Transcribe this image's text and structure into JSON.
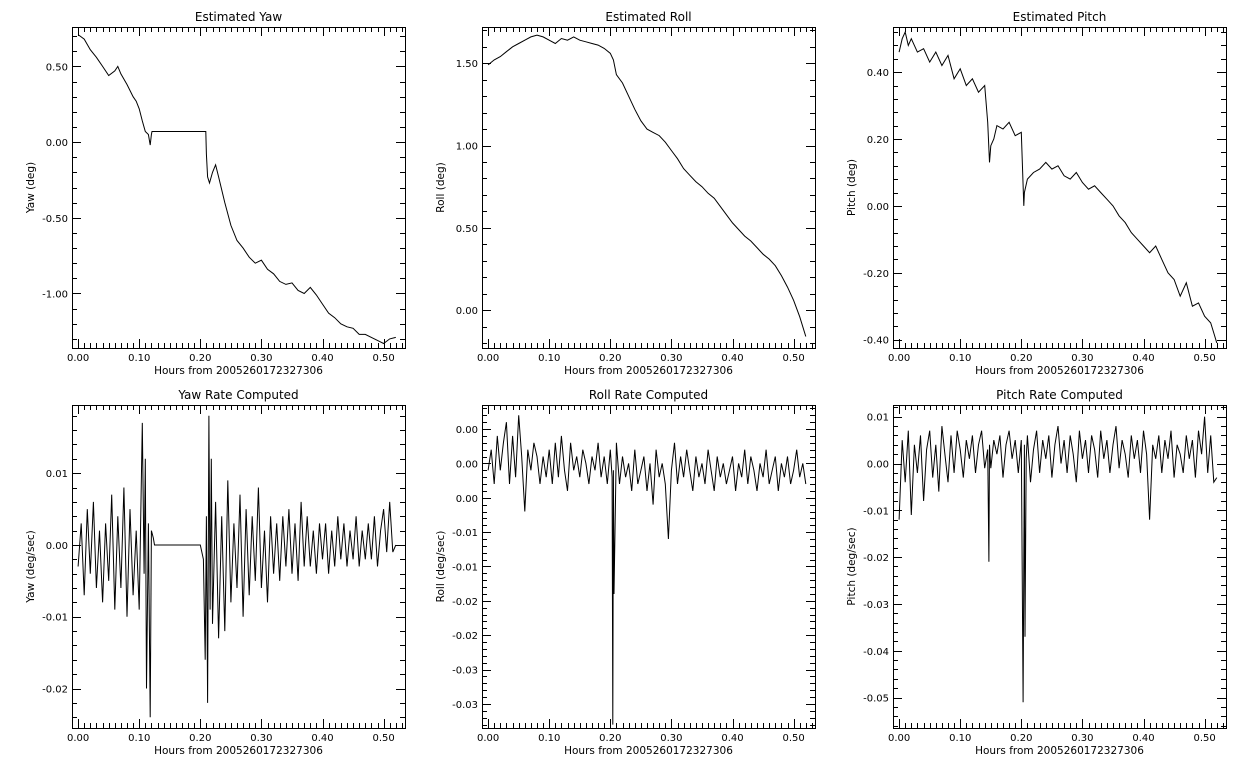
{
  "chart_data": [
    {
      "type": "line",
      "title": "Estimated Yaw",
      "xlabel": "Hours from 2005260172327306",
      "ylabel": "Yaw (deg)",
      "xlim": [
        -0.01,
        0.535
      ],
      "ylim": [
        -1.36,
        0.76
      ],
      "xticks": [
        0.0,
        0.1,
        0.2,
        0.3,
        0.4,
        0.5
      ],
      "xtick_labels": [
        "0.00",
        "0.10",
        "0.20",
        "0.30",
        "0.40",
        "0.50"
      ],
      "yticks": [
        0.5,
        0.0,
        -0.5,
        -1.0
      ],
      "ytick_labels": [
        "0.50",
        "0.00",
        "-0.50",
        "-1.00"
      ],
      "x": [
        0.0,
        0.01,
        0.02,
        0.03,
        0.04,
        0.05,
        0.06,
        0.065,
        0.07,
        0.08,
        0.09,
        0.095,
        0.1,
        0.105,
        0.11,
        0.115,
        0.118,
        0.12,
        0.121,
        0.13,
        0.15,
        0.2,
        0.209,
        0.21,
        0.212,
        0.215,
        0.22,
        0.225,
        0.23,
        0.24,
        0.25,
        0.26,
        0.27,
        0.28,
        0.29,
        0.3,
        0.31,
        0.32,
        0.33,
        0.34,
        0.35,
        0.36,
        0.37,
        0.38,
        0.39,
        0.4,
        0.41,
        0.42,
        0.43,
        0.44,
        0.45,
        0.46,
        0.47,
        0.48,
        0.49,
        0.5,
        0.51,
        0.52
      ],
      "y": [
        0.71,
        0.68,
        0.61,
        0.56,
        0.5,
        0.44,
        0.47,
        0.5,
        0.45,
        0.38,
        0.3,
        0.27,
        0.22,
        0.14,
        0.07,
        0.05,
        -0.02,
        0.05,
        0.07,
        0.07,
        0.07,
        0.07,
        0.07,
        -0.08,
        -0.23,
        -0.27,
        -0.2,
        -0.15,
        -0.23,
        -0.4,
        -0.55,
        -0.65,
        -0.7,
        -0.76,
        -0.8,
        -0.78,
        -0.84,
        -0.87,
        -0.92,
        -0.94,
        -0.93,
        -0.98,
        -1.0,
        -0.96,
        -1.01,
        -1.07,
        -1.13,
        -1.16,
        -1.2,
        -1.22,
        -1.23,
        -1.27,
        -1.27,
        -1.29,
        -1.31,
        -1.33,
        -1.3,
        -1.29
      ]
    },
    {
      "type": "line",
      "title": "Estimated Roll",
      "xlabel": "Hours from 2005260172327306",
      "ylabel": "Roll (deg)",
      "xlim": [
        -0.01,
        0.535
      ],
      "ylim": [
        -0.23,
        1.72
      ],
      "xticks": [
        0.0,
        0.1,
        0.2,
        0.3,
        0.4,
        0.5
      ],
      "xtick_labels": [
        "0.00",
        "0.10",
        "0.20",
        "0.30",
        "0.40",
        "0.50"
      ],
      "yticks": [
        1.5,
        1.0,
        0.5,
        0.0
      ],
      "ytick_labels": [
        "1.50",
        "1.00",
        "0.50",
        "0.00"
      ],
      "x": [
        0.0,
        0.01,
        0.02,
        0.03,
        0.04,
        0.05,
        0.06,
        0.07,
        0.08,
        0.09,
        0.1,
        0.11,
        0.12,
        0.13,
        0.14,
        0.15,
        0.16,
        0.17,
        0.18,
        0.19,
        0.2,
        0.205,
        0.21,
        0.22,
        0.23,
        0.24,
        0.25,
        0.26,
        0.27,
        0.28,
        0.29,
        0.3,
        0.31,
        0.32,
        0.33,
        0.34,
        0.35,
        0.36,
        0.37,
        0.38,
        0.39,
        0.4,
        0.41,
        0.42,
        0.43,
        0.44,
        0.45,
        0.46,
        0.47,
        0.48,
        0.49,
        0.5,
        0.51,
        0.52
      ],
      "y": [
        1.49,
        1.52,
        1.54,
        1.57,
        1.6,
        1.62,
        1.64,
        1.66,
        1.67,
        1.66,
        1.64,
        1.62,
        1.65,
        1.64,
        1.66,
        1.64,
        1.63,
        1.62,
        1.61,
        1.59,
        1.56,
        1.52,
        1.43,
        1.38,
        1.3,
        1.22,
        1.15,
        1.1,
        1.08,
        1.06,
        1.02,
        0.97,
        0.92,
        0.86,
        0.82,
        0.78,
        0.75,
        0.71,
        0.68,
        0.63,
        0.58,
        0.53,
        0.49,
        0.45,
        0.42,
        0.38,
        0.34,
        0.31,
        0.27,
        0.21,
        0.14,
        0.06,
        -0.04,
        -0.16
      ]
    },
    {
      "type": "line",
      "title": "Estimated Pitch",
      "xlabel": "Hours from 2005260172327306",
      "ylabel": "Pitch (deg)",
      "xlim": [
        -0.01,
        0.535
      ],
      "ylim": [
        -0.425,
        0.535
      ],
      "xticks": [
        0.0,
        0.1,
        0.2,
        0.3,
        0.4,
        0.5
      ],
      "xtick_labels": [
        "0.00",
        "0.10",
        "0.20",
        "0.30",
        "0.40",
        "0.50"
      ],
      "yticks": [
        0.4,
        0.2,
        0.0,
        -0.2,
        -0.4
      ],
      "ytick_labels": [
        "0.40",
        "0.20",
        "0.00",
        "-0.20",
        "-0.40"
      ],
      "x": [
        0.0,
        0.005,
        0.01,
        0.015,
        0.02,
        0.03,
        0.04,
        0.05,
        0.06,
        0.07,
        0.08,
        0.09,
        0.1,
        0.11,
        0.12,
        0.13,
        0.14,
        0.145,
        0.148,
        0.15,
        0.155,
        0.16,
        0.17,
        0.18,
        0.19,
        0.2,
        0.204,
        0.205,
        0.21,
        0.22,
        0.23,
        0.24,
        0.25,
        0.26,
        0.27,
        0.28,
        0.29,
        0.3,
        0.31,
        0.32,
        0.33,
        0.34,
        0.35,
        0.36,
        0.37,
        0.38,
        0.39,
        0.4,
        0.41,
        0.42,
        0.43,
        0.44,
        0.45,
        0.46,
        0.47,
        0.48,
        0.49,
        0.5,
        0.51,
        0.515,
        0.52
      ],
      "y": [
        0.46,
        0.5,
        0.52,
        0.48,
        0.5,
        0.46,
        0.47,
        0.43,
        0.46,
        0.42,
        0.45,
        0.38,
        0.41,
        0.36,
        0.38,
        0.34,
        0.36,
        0.25,
        0.13,
        0.18,
        0.2,
        0.24,
        0.23,
        0.25,
        0.21,
        0.22,
        0.0,
        0.04,
        0.08,
        0.1,
        0.11,
        0.13,
        0.11,
        0.12,
        0.09,
        0.08,
        0.1,
        0.07,
        0.05,
        0.06,
        0.04,
        0.02,
        0.0,
        -0.03,
        -0.05,
        -0.08,
        -0.1,
        -0.12,
        -0.14,
        -0.12,
        -0.16,
        -0.2,
        -0.22,
        -0.27,
        -0.23,
        -0.3,
        -0.29,
        -0.33,
        -0.35,
        -0.38,
        -0.41
      ]
    },
    {
      "type": "line",
      "title": "Yaw Rate Computed",
      "xlabel": "Hours from 2005260172327306",
      "ylabel": "Yaw (deg/sec)",
      "xlim": [
        -0.01,
        0.535
      ],
      "ylim": [
        -0.0255,
        0.0195
      ],
      "xticks": [
        0.0,
        0.1,
        0.2,
        0.3,
        0.4,
        0.5
      ],
      "xtick_labels": [
        "0.00",
        "0.10",
        "0.20",
        "0.30",
        "0.40",
        "0.50"
      ],
      "yticks": [
        0.01,
        0.0,
        -0.01,
        -0.02
      ],
      "ytick_labels": [
        "0.01",
        "0.00",
        "-0.01",
        "-0.02"
      ],
      "x": [
        0.0,
        0.005,
        0.01,
        0.015,
        0.02,
        0.025,
        0.03,
        0.035,
        0.04,
        0.045,
        0.05,
        0.055,
        0.06,
        0.065,
        0.07,
        0.075,
        0.08,
        0.085,
        0.09,
        0.095,
        0.1,
        0.105,
        0.108,
        0.11,
        0.112,
        0.115,
        0.118,
        0.12,
        0.123,
        0.125,
        0.13,
        0.2,
        0.205,
        0.208,
        0.21,
        0.212,
        0.214,
        0.216,
        0.218,
        0.22,
        0.225,
        0.23,
        0.235,
        0.24,
        0.245,
        0.25,
        0.255,
        0.26,
        0.265,
        0.27,
        0.275,
        0.28,
        0.285,
        0.29,
        0.295,
        0.3,
        0.305,
        0.31,
        0.315,
        0.32,
        0.325,
        0.33,
        0.335,
        0.34,
        0.345,
        0.35,
        0.355,
        0.36,
        0.365,
        0.37,
        0.375,
        0.38,
        0.385,
        0.39,
        0.395,
        0.4,
        0.405,
        0.41,
        0.415,
        0.42,
        0.425,
        0.43,
        0.435,
        0.44,
        0.445,
        0.45,
        0.455,
        0.46,
        0.465,
        0.47,
        0.475,
        0.48,
        0.485,
        0.49,
        0.495,
        0.5,
        0.505,
        0.51,
        0.515,
        0.52
      ],
      "y": [
        -0.003,
        0.003,
        -0.007,
        0.005,
        -0.004,
        0.006,
        -0.006,
        0.002,
        -0.008,
        0.003,
        -0.005,
        0.007,
        -0.009,
        0.004,
        -0.006,
        0.008,
        -0.01,
        0.005,
        -0.007,
        0.002,
        -0.009,
        0.017,
        -0.004,
        0.012,
        -0.02,
        0.003,
        -0.024,
        0.002,
        0.001,
        0.0,
        0.0,
        0.0,
        -0.002,
        -0.016,
        0.004,
        -0.022,
        0.018,
        -0.009,
        0.012,
        -0.011,
        0.006,
        -0.013,
        0.004,
        -0.012,
        0.009,
        -0.008,
        0.003,
        -0.006,
        0.007,
        -0.01,
        0.005,
        -0.007,
        0.004,
        -0.005,
        0.008,
        -0.006,
        0.002,
        -0.008,
        0.004,
        -0.004,
        0.003,
        -0.005,
        0.004,
        -0.003,
        0.005,
        -0.004,
        0.003,
        -0.005,
        0.006,
        -0.003,
        0.004,
        -0.003,
        0.002,
        -0.004,
        0.003,
        -0.002,
        0.003,
        -0.004,
        0.002,
        -0.003,
        0.004,
        -0.002,
        0.003,
        -0.003,
        0.002,
        -0.002,
        0.004,
        -0.003,
        0.002,
        -0.002,
        0.003,
        -0.002,
        0.004,
        -0.003,
        0.002,
        0.005,
        -0.001,
        0.006,
        -0.001,
        0.0
      ]
    },
    {
      "type": "line",
      "title": "Roll Rate Computed",
      "xlabel": "Hours from 2005260172327306",
      "ylabel": "Roll (deg/sec)",
      "xlim": [
        -0.01,
        0.535
      ],
      "ylim": [
        -0.0335,
        0.0135
      ],
      "xticks": [
        0.0,
        0.1,
        0.2,
        0.3,
        0.4,
        0.5
      ],
      "xtick_labels": [
        "0.00",
        "0.10",
        "0.20",
        "0.30",
        "0.40",
        "0.50"
      ],
      "yticks": [
        0.01,
        0.005,
        0.0,
        -0.005,
        -0.01,
        -0.015,
        -0.02,
        -0.025,
        -0.03
      ],
      "ytick_labels": [
        "0.00",
        "0.00",
        "0.00",
        "-0.01",
        "-0.01",
        "-0.02",
        "-0.02",
        "-0.03",
        "-0.03"
      ],
      "x": [
        0.0,
        0.005,
        0.01,
        0.015,
        0.02,
        0.025,
        0.03,
        0.035,
        0.04,
        0.045,
        0.05,
        0.055,
        0.06,
        0.065,
        0.07,
        0.075,
        0.08,
        0.085,
        0.09,
        0.095,
        0.1,
        0.105,
        0.11,
        0.115,
        0.12,
        0.125,
        0.13,
        0.135,
        0.14,
        0.145,
        0.15,
        0.155,
        0.16,
        0.165,
        0.17,
        0.175,
        0.18,
        0.185,
        0.19,
        0.195,
        0.2,
        0.203,
        0.204,
        0.205,
        0.206,
        0.21,
        0.215,
        0.22,
        0.225,
        0.23,
        0.235,
        0.24,
        0.245,
        0.25,
        0.255,
        0.26,
        0.265,
        0.27,
        0.275,
        0.28,
        0.285,
        0.29,
        0.295,
        0.3,
        0.305,
        0.31,
        0.315,
        0.32,
        0.325,
        0.33,
        0.335,
        0.34,
        0.345,
        0.35,
        0.355,
        0.36,
        0.365,
        0.37,
        0.375,
        0.38,
        0.385,
        0.39,
        0.395,
        0.4,
        0.405,
        0.41,
        0.415,
        0.42,
        0.425,
        0.43,
        0.435,
        0.44,
        0.445,
        0.45,
        0.455,
        0.46,
        0.465,
        0.47,
        0.475,
        0.48,
        0.485,
        0.49,
        0.495,
        0.5,
        0.505,
        0.51,
        0.515,
        0.52
      ],
      "y": [
        0.004,
        0.007,
        0.002,
        0.009,
        0.004,
        0.008,
        0.011,
        0.002,
        0.009,
        0.003,
        0.012,
        0.006,
        -0.002,
        0.007,
        0.004,
        0.008,
        0.006,
        0.002,
        0.006,
        0.003,
        0.007,
        0.002,
        0.008,
        0.003,
        0.009,
        0.004,
        0.001,
        0.008,
        0.004,
        0.006,
        0.003,
        0.007,
        0.005,
        0.002,
        0.006,
        0.004,
        0.008,
        0.003,
        0.006,
        0.002,
        0.007,
        0.003,
        -0.033,
        0.004,
        -0.014,
        0.008,
        0.002,
        0.006,
        0.003,
        0.005,
        0.001,
        0.007,
        0.002,
        0.004,
        0.006,
        0.001,
        0.005,
        -0.001,
        0.007,
        0.003,
        0.005,
        0.002,
        -0.006,
        0.004,
        0.008,
        0.002,
        0.006,
        0.003,
        0.007,
        0.004,
        0.001,
        0.006,
        0.003,
        0.005,
        0.002,
        0.007,
        0.004,
        0.001,
        0.006,
        0.003,
        0.005,
        0.002,
        0.004,
        0.006,
        0.001,
        0.005,
        0.003,
        0.007,
        0.002,
        0.006,
        0.004,
        0.001,
        0.005,
        0.003,
        0.007,
        0.002,
        0.004,
        0.006,
        0.001,
        0.005,
        0.003,
        0.006,
        0.002,
        0.004,
        0.007,
        0.003,
        0.005,
        0.002
      ]
    },
    {
      "type": "line",
      "title": "Pitch Rate Computed",
      "xlabel": "Hours from 2005260172327306",
      "ylabel": "Pitch (deg/sec)",
      "xlim": [
        -0.01,
        0.535
      ],
      "ylim": [
        -0.0565,
        0.0125
      ],
      "xticks": [
        0.0,
        0.1,
        0.2,
        0.3,
        0.4,
        0.5
      ],
      "xtick_labels": [
        "0.00",
        "0.10",
        "0.20",
        "0.30",
        "0.40",
        "0.50"
      ],
      "yticks": [
        0.01,
        0.0,
        -0.01,
        -0.02,
        -0.03,
        -0.04,
        -0.05
      ],
      "ytick_labels": [
        "0.01",
        "0.00",
        "-0.01",
        "-0.02",
        "-0.03",
        "-0.04",
        "-0.05"
      ],
      "x": [
        0.0,
        0.005,
        0.01,
        0.015,
        0.02,
        0.025,
        0.03,
        0.035,
        0.04,
        0.045,
        0.05,
        0.055,
        0.06,
        0.065,
        0.07,
        0.075,
        0.08,
        0.085,
        0.09,
        0.095,
        0.1,
        0.105,
        0.11,
        0.115,
        0.12,
        0.125,
        0.13,
        0.135,
        0.14,
        0.145,
        0.147,
        0.148,
        0.15,
        0.155,
        0.16,
        0.165,
        0.17,
        0.175,
        0.18,
        0.185,
        0.19,
        0.195,
        0.2,
        0.203,
        0.205,
        0.206,
        0.208,
        0.21,
        0.215,
        0.22,
        0.225,
        0.23,
        0.235,
        0.24,
        0.245,
        0.25,
        0.255,
        0.26,
        0.265,
        0.27,
        0.275,
        0.28,
        0.285,
        0.29,
        0.295,
        0.3,
        0.305,
        0.31,
        0.315,
        0.32,
        0.325,
        0.33,
        0.335,
        0.34,
        0.345,
        0.35,
        0.355,
        0.36,
        0.365,
        0.37,
        0.375,
        0.38,
        0.385,
        0.39,
        0.395,
        0.4,
        0.405,
        0.41,
        0.415,
        0.42,
        0.425,
        0.43,
        0.435,
        0.44,
        0.445,
        0.45,
        0.455,
        0.46,
        0.465,
        0.47,
        0.475,
        0.48,
        0.485,
        0.49,
        0.495,
        0.5,
        0.505,
        0.51,
        0.515,
        0.52
      ],
      "y": [
        -0.012,
        0.005,
        -0.004,
        0.007,
        -0.011,
        0.004,
        -0.002,
        0.006,
        -0.008,
        0.003,
        0.007,
        -0.003,
        0.004,
        -0.006,
        0.008,
        0.002,
        -0.004,
        0.006,
        -0.002,
        0.007,
        0.003,
        -0.003,
        0.005,
        0.001,
        0.006,
        -0.002,
        0.004,
        0.007,
        -0.001,
        0.003,
        -0.021,
        0.004,
        -0.001,
        0.005,
        0.002,
        0.006,
        -0.003,
        0.004,
        0.007,
        0.001,
        0.005,
        -0.002,
        0.005,
        -0.051,
        0.004,
        -0.037,
        0.001,
        0.006,
        -0.004,
        0.003,
        0.007,
        -0.002,
        0.005,
        0.001,
        0.006,
        -0.003,
        0.004,
        0.008,
        0.0,
        0.005,
        -0.002,
        0.006,
        0.002,
        -0.004,
        0.007,
        0.001,
        0.005,
        -0.002,
        0.006,
        0.003,
        -0.003,
        0.007,
        0.001,
        0.005,
        -0.002,
        0.004,
        0.008,
        -0.001,
        0.005,
        0.002,
        -0.003,
        0.006,
        0.001,
        0.005,
        -0.002,
        0.007,
        0.002,
        -0.012,
        0.004,
        0.001,
        0.006,
        -0.002,
        0.005,
        0.001,
        0.007,
        -0.003,
        0.004,
        0.002,
        -0.002,
        0.006,
        0.001,
        0.005,
        -0.003,
        0.007,
        0.002,
        0.01,
        -0.002,
        0.006,
        -0.004,
        -0.003
      ]
    }
  ]
}
